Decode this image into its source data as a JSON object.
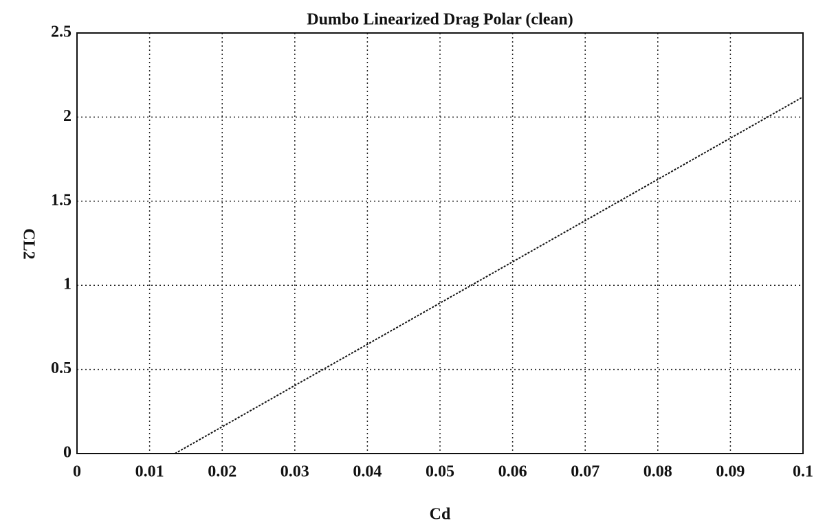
{
  "chart_data": {
    "type": "line",
    "title": "Dumbo Linearized Drag Polar (clean)",
    "x_label": "Cd",
    "y_label": "CL2",
    "x": [
      0.0135,
      0.1
    ],
    "series": [
      {
        "color": "#111111",
        "values": [
          0,
          2.12
        ]
      }
    ],
    "xlim": [
      0,
      0.1
    ],
    "ylim": [
      0,
      2.5
    ],
    "xticks": [
      0,
      0.01,
      0.02,
      0.03,
      0.04,
      0.05,
      0.06,
      0.07,
      0.08,
      0.09,
      0.1
    ],
    "yticks": [
      0,
      0.5,
      1,
      1.5,
      2,
      2.5
    ],
    "grid": true
  }
}
